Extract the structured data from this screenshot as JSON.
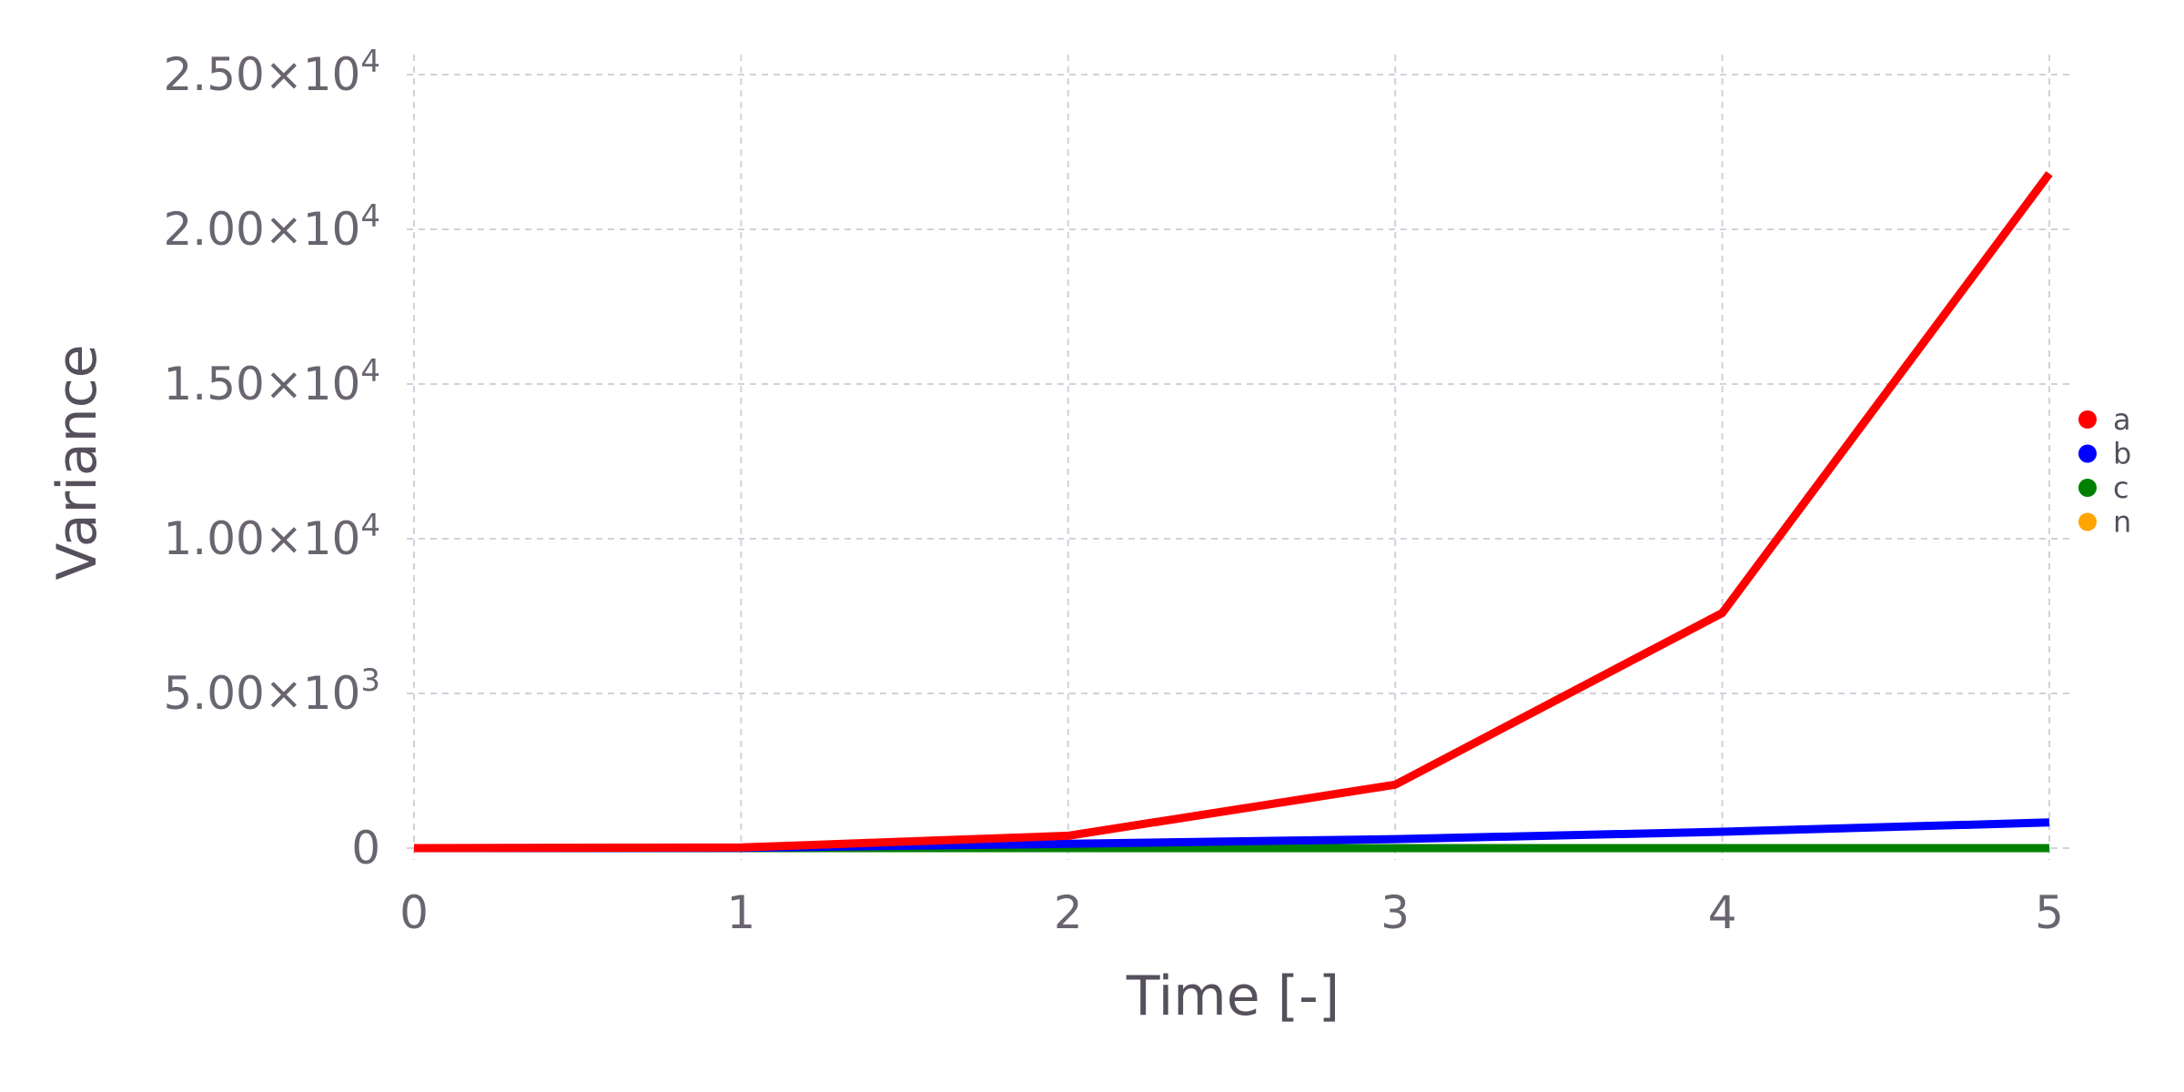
{
  "chart_data": {
    "type": "line",
    "title": "",
    "xlabel": "Time [-]",
    "ylabel": "Variance",
    "x": [
      0,
      1,
      2,
      3,
      4,
      5
    ],
    "xlim": [
      0,
      5
    ],
    "ylim": [
      0,
      25000
    ],
    "xticks": [
      {
        "value": 0,
        "label": "0"
      },
      {
        "value": 1,
        "label": "1"
      },
      {
        "value": 2,
        "label": "2"
      },
      {
        "value": 3,
        "label": "3"
      },
      {
        "value": 4,
        "label": "4"
      },
      {
        "value": 5,
        "label": "5"
      }
    ],
    "yticks": [
      {
        "value": 0,
        "mantissa": "0",
        "exponent": ""
      },
      {
        "value": 5000,
        "mantissa": "5.00×10",
        "exponent": "3"
      },
      {
        "value": 10000,
        "mantissa": "1.00×10",
        "exponent": "4"
      },
      {
        "value": 15000,
        "mantissa": "1.50×10",
        "exponent": "4"
      },
      {
        "value": 20000,
        "mantissa": "2.00×10",
        "exponent": "4"
      },
      {
        "value": 25000,
        "mantissa": "2.50×10",
        "exponent": "4"
      }
    ],
    "grid": true,
    "legend_position": "right",
    "series": [
      {
        "name": "a",
        "color": "#ff0000",
        "values": [
          0,
          20,
          400,
          2050,
          7600,
          21800
        ]
      },
      {
        "name": "b",
        "color": "#0000ff",
        "values": [
          0,
          10,
          140,
          290,
          530,
          830
        ]
      },
      {
        "name": "c",
        "color": "#008000",
        "values": [
          0,
          0,
          0,
          0,
          0,
          0
        ]
      },
      {
        "name": "n",
        "color": "#ffa500",
        "values": [
          0,
          0,
          0,
          0,
          0,
          0
        ]
      }
    ]
  }
}
